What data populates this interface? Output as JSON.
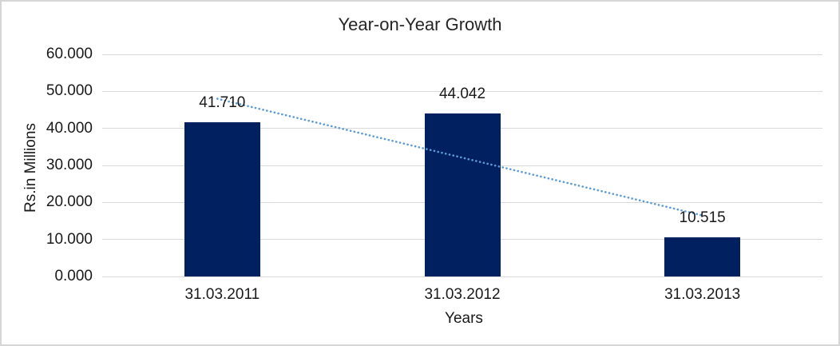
{
  "ui": {
    "colors": {
      "bar": "#002060",
      "trendline": "#5B9BD5",
      "gridline": "#d9d9d9",
      "border": "#d6d6d6",
      "text": "#1a1a1a"
    }
  },
  "chart_data": {
    "type": "bar",
    "title": "Year-on-Year Growth",
    "xlabel": "Years",
    "ylabel": "Rs.in Millions",
    "categories": [
      "31.03.2011",
      "31.03.2012",
      "31.03.2013"
    ],
    "values": [
      41.71,
      44.042,
      10.515
    ],
    "data_labels": [
      "41.710",
      "44.042",
      "10.515"
    ],
    "ylim": [
      0,
      60
    ],
    "ytick_step": 10,
    "ytick_labels": [
      "0.000",
      "10.000",
      "20.000",
      "30.000",
      "40.000",
      "50.000",
      "60.000"
    ],
    "grid": true,
    "legend": false,
    "trendline": "linear-dotted"
  }
}
